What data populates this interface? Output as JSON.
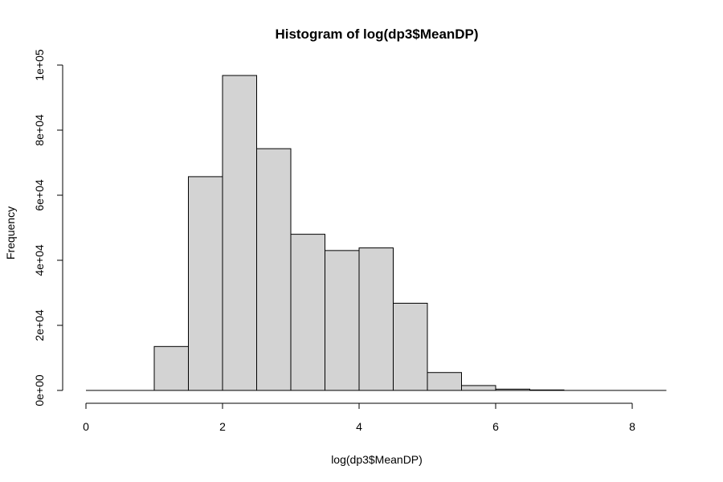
{
  "chart_data": {
    "type": "bar",
    "title": "Histogram of log(dp3$MeanDP)",
    "xlabel": "log(dp3$MeanDP)",
    "ylabel": "Frequency",
    "xlim": [
      0,
      8.5
    ],
    "ylim": [
      0,
      100000
    ],
    "x_ticks": [
      0,
      2,
      4,
      6,
      8
    ],
    "y_ticks": [
      0,
      20000,
      40000,
      60000,
      80000,
      100000
    ],
    "y_tick_labels": [
      "0e+00",
      "2e+04",
      "4e+04",
      "6e+04",
      "8e+04",
      "1e+05"
    ],
    "bin_width": 0.5,
    "bin_starts": [
      1.0,
      1.5,
      2.0,
      2.5,
      3.0,
      3.5,
      4.0,
      4.5,
      5.0,
      5.5,
      6.0,
      6.5
    ],
    "values": [
      13500,
      65700,
      96800,
      74300,
      48000,
      43000,
      43800,
      26800,
      5500,
      1500,
      400,
      150
    ],
    "grid": false,
    "bar_color": "#d3d3d3",
    "edge_color": "#000000"
  }
}
